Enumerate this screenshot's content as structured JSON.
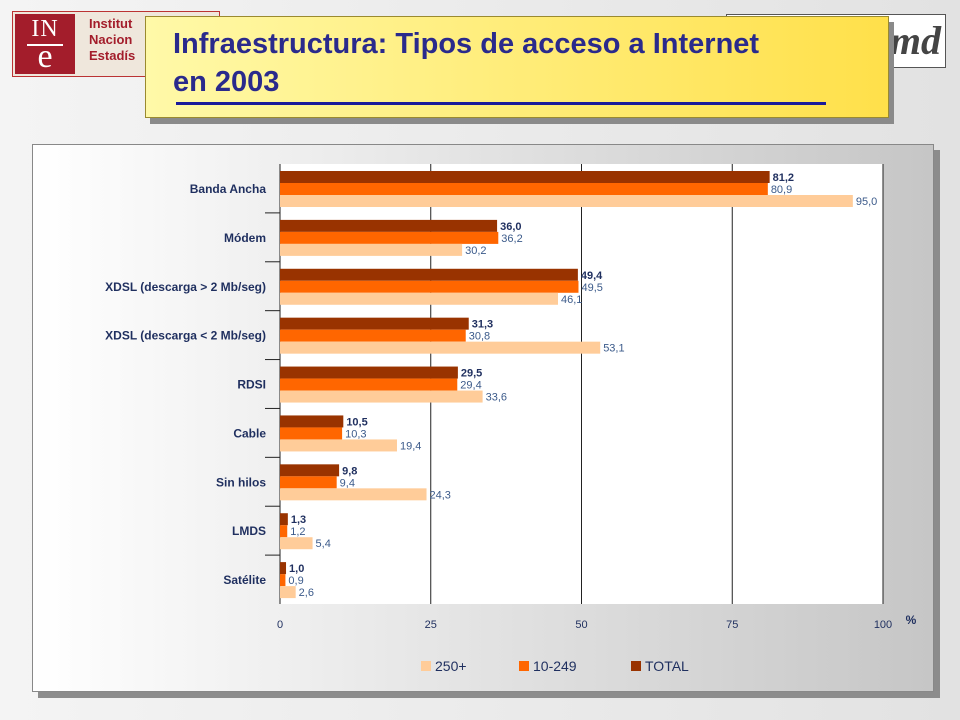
{
  "header": {
    "logo_mark_top": "IN",
    "logo_mark_bottom": "e",
    "logo_lines": [
      "Institut",
      "Nacion",
      "Estadís"
    ],
    "right_logo": "md"
  },
  "title": {
    "line1": "Infraestructura: Tipos de acceso a Internet",
    "line2": "en 2003"
  },
  "chart_data": {
    "type": "bar",
    "orientation": "horizontal",
    "categories": [
      "Banda Ancha",
      "Módem",
      "XDSL (descarga > 2 Mb/seg)",
      "XDSL (descarga < 2 Mb/seg)",
      "RDSI",
      "Cable",
      "Sin hilos",
      "LMDS",
      "Satélite"
    ],
    "series": [
      {
        "name": "TOTAL",
        "color": "#993300",
        "values": [
          81.2,
          36.0,
          49.4,
          31.3,
          29.5,
          10.5,
          9.8,
          1.3,
          1.0
        ],
        "labels": [
          "81,2",
          "36,0",
          "49,4",
          "31,3",
          "29,5",
          "10,5",
          "9,8",
          "1,3",
          "1,0"
        ]
      },
      {
        "name": "10-249",
        "color": "#ff6600",
        "values": [
          80.9,
          36.2,
          49.5,
          30.8,
          29.4,
          10.3,
          9.4,
          1.2,
          0.9
        ],
        "labels": [
          "80,9",
          "36,2",
          "49,5",
          "30,8",
          "29,4",
          "10,3",
          "9,4",
          "1,2",
          "0,9"
        ]
      },
      {
        "name": "250+",
        "color": "#ffcc99",
        "values": [
          95.0,
          30.2,
          46.1,
          53.1,
          33.6,
          19.4,
          24.3,
          5.4,
          2.6
        ],
        "labels": [
          "95,0",
          "30,2",
          "46,1",
          "53,1",
          "33,6",
          "19,4",
          "24,3",
          "5,4",
          "2,6"
        ]
      }
    ],
    "legend_order": [
      "250+",
      "10-249",
      "TOTAL"
    ],
    "xlim": [
      0,
      100
    ],
    "xticks": [
      "0",
      "25",
      "50",
      "75",
      "100"
    ],
    "xlabel": "%",
    "grid": true,
    "legend_position": "bottom"
  }
}
